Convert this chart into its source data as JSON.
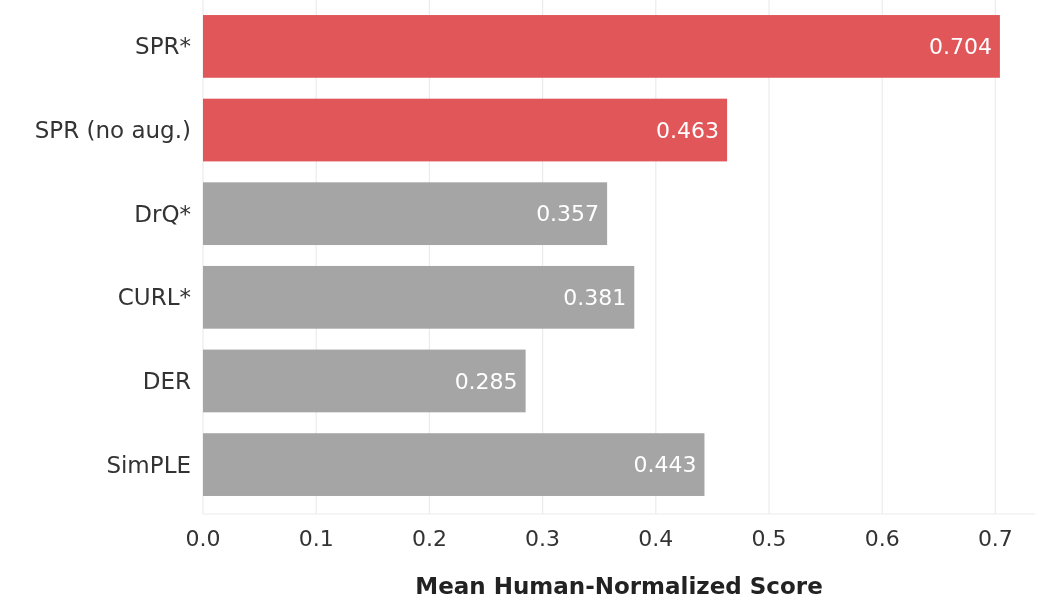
{
  "chart_data": {
    "type": "bar",
    "orientation": "horizontal",
    "xlabel": "Mean Human-Normalized Score",
    "categories": [
      "SPR*",
      "SPR (no aug.)",
      "DrQ*",
      "CURL*",
      "DER",
      "SimPLE"
    ],
    "values": [
      0.704,
      0.463,
      0.357,
      0.381,
      0.285,
      0.443
    ],
    "colors": [
      "#e15759",
      "#e15759",
      "#a5a5a5",
      "#a5a5a5",
      "#a5a5a5",
      "#a5a5a5"
    ],
    "xlim": [
      0,
      0.735
    ],
    "xticks": [
      {
        "value": 0,
        "label": "0.0"
      },
      0.1,
      0.2,
      0.3,
      0.4,
      0.5,
      0.6,
      0.7
    ],
    "grid": "x",
    "data_labels": true
  }
}
